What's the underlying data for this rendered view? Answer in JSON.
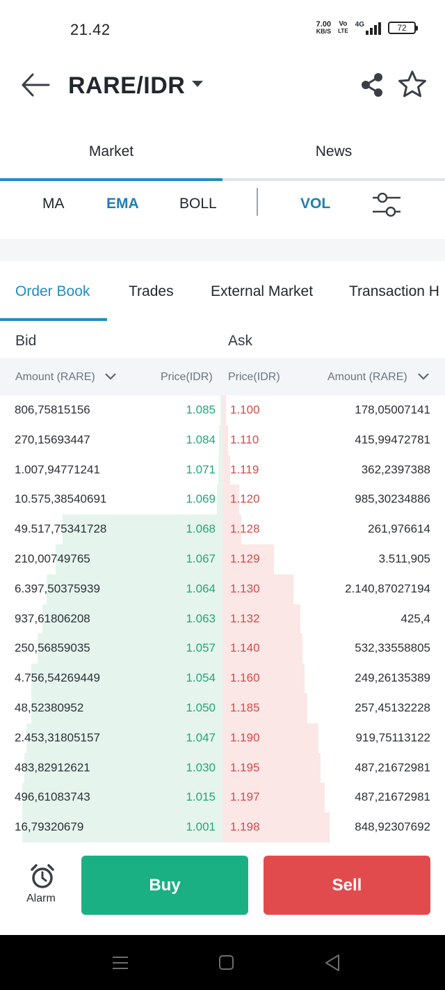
{
  "status": {
    "time": "21.42",
    "speed_value": "7.00",
    "speed_unit": "KB/S",
    "volte_top": "Vo",
    "volte_bottom": "LTE",
    "network": "4G",
    "battery": "72"
  },
  "header": {
    "title": "RARE/IDR",
    "back_icon": "arrow-left-icon",
    "share_icon": "share-icon",
    "favorite_icon": "star-icon"
  },
  "top_tabs": [
    {
      "label": "Market",
      "active": true
    },
    {
      "label": "News",
      "active": false
    }
  ],
  "indicators": {
    "ma": "MA",
    "ema": "EMA",
    "boll": "BOLL",
    "vol": "VOL",
    "settings_icon": "sliders-icon"
  },
  "order_tabs": [
    "Order Book",
    "Trades",
    "External Market",
    "Transaction H"
  ],
  "book": {
    "bid_label": "Bid",
    "ask_label": "Ask",
    "columns": {
      "bid_amount": "Amount (RARE)",
      "bid_price": "Price(IDR)",
      "ask_price": "Price(IDR)",
      "ask_amount": "Amount (RARE)"
    },
    "bids": [
      {
        "amount": "806,75815156",
        "price": "1.085",
        "depth": 0.008
      },
      {
        "amount": "270,15693447",
        "price": "1.084",
        "depth": 0.015
      },
      {
        "amount": "1.007,94771241",
        "price": "1.071",
        "depth": 0.02
      },
      {
        "amount": "10.575,38540691",
        "price": "1.069",
        "depth": 0.025
      },
      {
        "amount": "49.517,75341728",
        "price": "1.068",
        "depth": 0.72
      },
      {
        "amount": "210,00749765",
        "price": "1.067",
        "depth": 0.75
      },
      {
        "amount": "6.397,50375939",
        "price": "1.064",
        "depth": 0.79
      },
      {
        "amount": "937,61806208",
        "price": "1.063",
        "depth": 0.81
      },
      {
        "amount": "250,56859035",
        "price": "1.057",
        "depth": 0.83
      },
      {
        "amount": "4.756,54269449",
        "price": "1.054",
        "depth": 0.86
      },
      {
        "amount": "48,52380952",
        "price": "1.050",
        "depth": 0.86
      },
      {
        "amount": "2.453,31805157",
        "price": "1.047",
        "depth": 0.88
      },
      {
        "amount": "483,82912621",
        "price": "1.030",
        "depth": 0.89
      },
      {
        "amount": "496,61083743",
        "price": "1.015",
        "depth": 0.9
      },
      {
        "amount": "16,79320679",
        "price": "1.001",
        "depth": 0.9
      }
    ],
    "asks": [
      {
        "price": "1.100",
        "amount": "178,05007141",
        "depth": 0.015
      },
      {
        "price": "1.110",
        "amount": "415,99472781",
        "depth": 0.025
      },
      {
        "price": "1.119",
        "amount": "362,2397388",
        "depth": 0.035
      },
      {
        "price": "1.120",
        "amount": "985,30234886",
        "depth": 0.075
      },
      {
        "price": "1.128",
        "amount": "261,976614",
        "depth": 0.085
      },
      {
        "price": "1.129",
        "amount": "3.511,905",
        "depth": 0.23
      },
      {
        "price": "1.130",
        "amount": "2.140,87027194",
        "depth": 0.32
      },
      {
        "price": "1.132",
        "amount": "425,4",
        "depth": 0.35
      },
      {
        "price": "1.140",
        "amount": "532,33558805",
        "depth": 0.36
      },
      {
        "price": "1.160",
        "amount": "249,26135389",
        "depth": 0.37
      },
      {
        "price": "1.185",
        "amount": "257,45132228",
        "depth": 0.38
      },
      {
        "price": "1.190",
        "amount": "919,75113122",
        "depth": 0.43
      },
      {
        "price": "1.195",
        "amount": "487,21672981",
        "depth": 0.44
      },
      {
        "price": "1.197",
        "amount": "487,21672981",
        "depth": 0.46
      },
      {
        "price": "1.198",
        "amount": "848,92307692",
        "depth": 0.48
      }
    ]
  },
  "bottom": {
    "alarm_label": "Alarm",
    "alarm_icon": "alarm-clock-icon",
    "buy_label": "Buy",
    "sell_label": "Sell"
  },
  "colors": {
    "accent": "#1f8dc1",
    "bid": "#24a57a",
    "ask": "#d64a4a",
    "buy_button": "#1ab084",
    "sell_button": "#e24b4d"
  }
}
